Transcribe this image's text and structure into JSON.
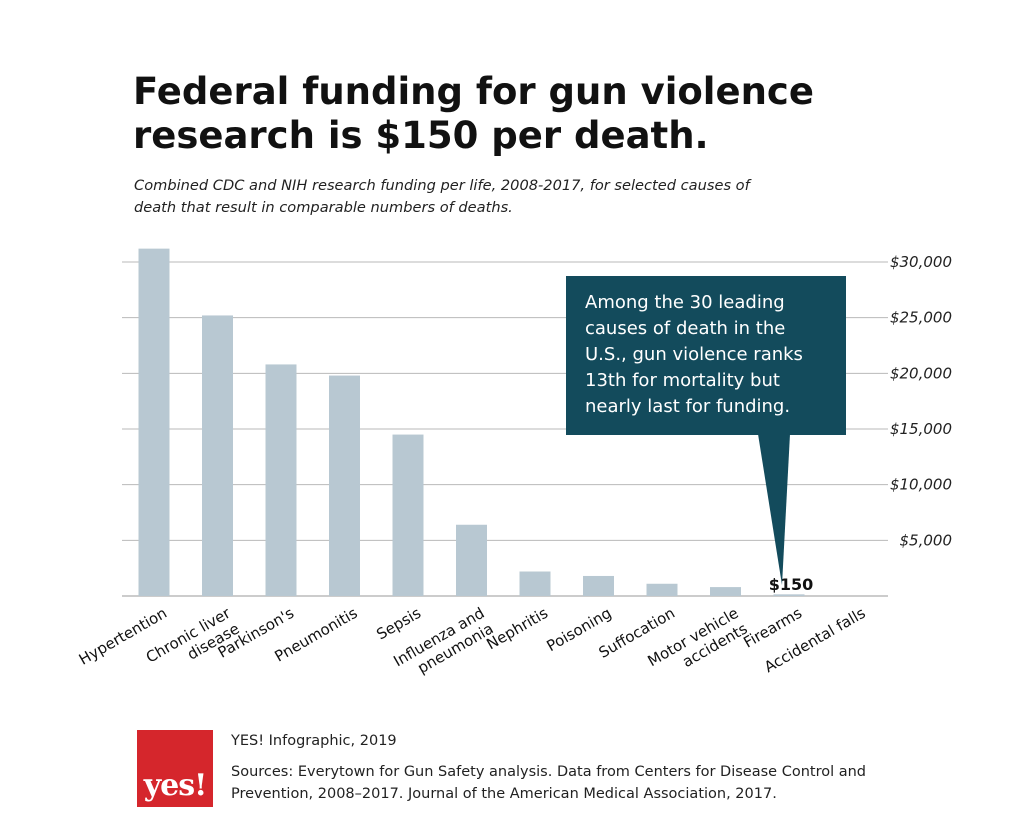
{
  "title": "Federal funding for gun violence research is $150 per death.",
  "subtitle": "Combined CDC and NIH research funding per life, 2008-2017, for selected causes of death that result in comparable numbers of deaths.",
  "callout": {
    "lines": [
      "Among the 30 leading",
      "causes of death in the",
      "U.S., gun violence ranks",
      "13th for mortality but",
      "nearly last for funding."
    ],
    "color": "#134b5c"
  },
  "footer": {
    "logo_text": "yes!",
    "credit": "YES! Infographic, 2019",
    "sources": "Sources: Everytown for Gun Safety analysis. Data from Centers for Disease Control and Prevention, 2008–2017. Journal of the American Medical Association, 2017."
  },
  "colors": {
    "bar": "#b8c8d2",
    "grid": "#b9b9b9",
    "logo": "#d5262c"
  },
  "chart_data": {
    "type": "bar",
    "title": "Federal funding for gun violence research is $150 per death.",
    "subtitle": "Combined CDC and NIH research funding per life, 2008-2017, for selected causes of death that result in comparable numbers of deaths.",
    "categories": [
      [
        "Hypertention"
      ],
      [
        "Chronic liver",
        "disease"
      ],
      [
        "Parkinson's"
      ],
      [
        "Pneumonitis"
      ],
      [
        "Sepsis"
      ],
      [
        "Influenza and",
        "pneumonia"
      ],
      [
        "Nephritis"
      ],
      [
        "Poisoning"
      ],
      [
        "Suffocation"
      ],
      [
        "Motor vehicle",
        "accidents"
      ],
      [
        "Firearms"
      ],
      [
        "Accidental falls"
      ]
    ],
    "values": [
      31200,
      25200,
      20800,
      19800,
      14500,
      6400,
      2200,
      1800,
      1100,
      800,
      150,
      null
    ],
    "ylim": [
      0,
      30000
    ],
    "yticks": [
      5000,
      10000,
      15000,
      20000,
      25000,
      30000
    ],
    "ytick_labels": [
      "$5,000",
      "$10,000",
      "$15,000",
      "$20,000",
      "$25,000",
      "$30,000"
    ],
    "y_axis_side": "right",
    "grid": true,
    "data_labels": [
      {
        "category_index": 10,
        "text": "$150"
      }
    ]
  }
}
